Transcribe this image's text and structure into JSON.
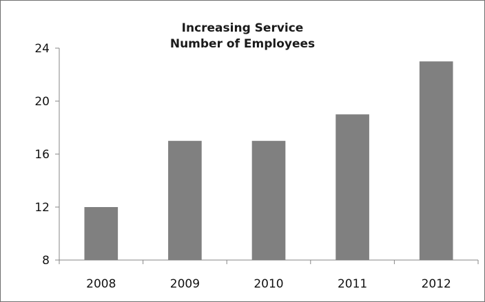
{
  "chart_data": {
    "type": "bar",
    "title": [
      "Increasing Service",
      "Number of Employees"
    ],
    "categories": [
      "2008",
      "2009",
      "2010",
      "2011",
      "2012"
    ],
    "values": [
      12,
      17,
      17,
      19,
      23
    ],
    "ylim": [
      8,
      24
    ],
    "yticks": [
      8,
      12,
      16,
      20,
      24
    ],
    "xlabel": "",
    "ylabel": "",
    "grid": false,
    "legend": "none",
    "bar_color": "#808080",
    "axis_color": "#868686"
  }
}
